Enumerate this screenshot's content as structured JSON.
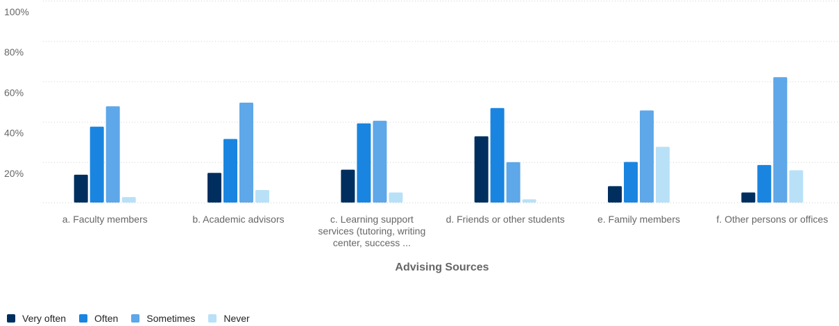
{
  "chart_data": {
    "type": "bar",
    "title": "",
    "xlabel": "Advising Sources",
    "ylabel": "",
    "ylim": [
      0,
      100
    ],
    "y_ticks": [
      "100%",
      "80%",
      "60%",
      "40%",
      "20%"
    ],
    "y_tick_values": [
      100,
      80,
      60,
      40,
      20
    ],
    "grid": true,
    "legend_position": "bottom-left",
    "categories": [
      [
        "a. Faculty members"
      ],
      [
        "b. Academic advisors"
      ],
      [
        "c. Learning support",
        "services (tutoring, writing",
        "center, success ..."
      ],
      [
        "d. Friends or other students"
      ],
      [
        "e. Family members"
      ],
      [
        "f. Other persons or offices"
      ]
    ],
    "series": [
      {
        "name": "Very often",
        "color": "#002f5f",
        "values": [
          13.8,
          14.7,
          16.3,
          32.8,
          8.1,
          5.0
        ]
      },
      {
        "name": "Often",
        "color": "#1a85e0",
        "values": [
          37.6,
          31.5,
          39.2,
          46.8,
          20.1,
          18.6
        ]
      },
      {
        "name": "Sometimes",
        "color": "#5ea7e8",
        "values": [
          47.7,
          49.5,
          40.5,
          20.0,
          45.6,
          62.1
        ]
      },
      {
        "name": "Never",
        "color": "#b8e1f8",
        "values": [
          2.7,
          6.2,
          5.0,
          1.6,
          27.6,
          16.0
        ]
      }
    ]
  }
}
